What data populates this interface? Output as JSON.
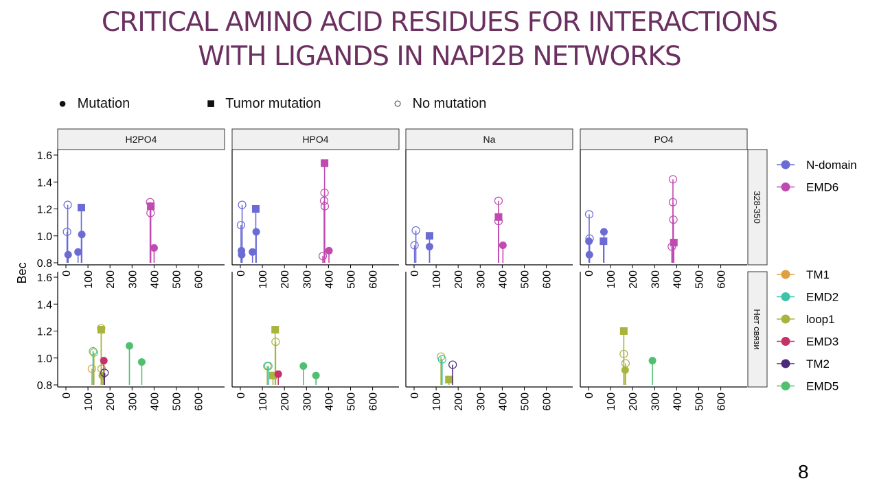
{
  "title_line1": "CRITICAL AMINO ACID RESIDUES FOR INTERACTIONS",
  "title_line2": "WITH LIGANDS IN NAPI2B NETWORKS",
  "page_number": "8",
  "shape_legend": [
    {
      "label": "Mutation",
      "symbol": "filled-circle"
    },
    {
      "label": "Tumor mutation",
      "symbol": "filled-square"
    },
    {
      "label": "No mutation",
      "symbol": "open-circle"
    }
  ],
  "chart_data": {
    "type": "scatter",
    "style": "lollipop facet grid",
    "ylabel": "Вес",
    "facet_cols": [
      "H2PO4",
      "HPO4",
      "Na",
      "PO4"
    ],
    "facet_rows": [
      "328-350",
      "Нет связи"
    ],
    "x_ticks": [
      0,
      100,
      200,
      300,
      400,
      500,
      600
    ],
    "y_ticks": [
      0.8,
      1.0,
      1.2,
      1.4,
      1.6
    ],
    "xlim": [
      0,
      700
    ],
    "ylim": [
      0.8,
      1.6
    ],
    "legend_position": "right",
    "colors": {
      "N-domain": "#6b6bd6",
      "EMD6": "#c04ab0",
      "TM1": "#e0a040",
      "EMD2": "#3cc4a8",
      "loop1": "#a8b43c",
      "EMD3": "#c8306c",
      "TM2": "#4a2a7a",
      "EMD5": "#50c070"
    },
    "legend_groups": [
      {
        "row": "328-350",
        "entries": [
          "N-domain",
          "EMD6"
        ]
      },
      {
        "row": "Нет связи",
        "entries": [
          "TM1",
          "EMD2",
          "loop1",
          "EMD3",
          "TM2",
          "EMD5"
        ]
      }
    ],
    "panels": [
      {
        "col": "H2PO4",
        "row": "328-350",
        "points": [
          {
            "x": 8,
            "y": 1.23,
            "domain": "N-domain",
            "shape": "open"
          },
          {
            "x": 5,
            "y": 1.03,
            "domain": "N-domain",
            "shape": "open"
          },
          {
            "x": 10,
            "y": 0.86,
            "domain": "N-domain",
            "shape": "circle"
          },
          {
            "x": 55,
            "y": 0.88,
            "domain": "N-domain",
            "shape": "circle"
          },
          {
            "x": 70,
            "y": 1.21,
            "domain": "N-domain",
            "shape": "square"
          },
          {
            "x": 72,
            "y": 1.01,
            "domain": "N-domain",
            "shape": "circle"
          },
          {
            "x": 382,
            "y": 1.25,
            "domain": "EMD6",
            "shape": "open"
          },
          {
            "x": 384,
            "y": 1.17,
            "domain": "EMD6",
            "shape": "open"
          },
          {
            "x": 385,
            "y": 1.22,
            "domain": "EMD6",
            "shape": "square"
          },
          {
            "x": 400,
            "y": 0.91,
            "domain": "EMD6",
            "shape": "circle"
          }
        ]
      },
      {
        "col": "HPO4",
        "row": "328-350",
        "points": [
          {
            "x": 8,
            "y": 1.23,
            "domain": "N-domain",
            "shape": "open"
          },
          {
            "x": 3,
            "y": 1.08,
            "domain": "N-domain",
            "shape": "open"
          },
          {
            "x": 5,
            "y": 0.89,
            "domain": "N-domain",
            "shape": "circle"
          },
          {
            "x": 6,
            "y": 0.86,
            "domain": "N-domain",
            "shape": "circle"
          },
          {
            "x": 55,
            "y": 0.88,
            "domain": "N-domain",
            "shape": "circle"
          },
          {
            "x": 70,
            "y": 1.2,
            "domain": "N-domain",
            "shape": "square"
          },
          {
            "x": 72,
            "y": 1.03,
            "domain": "N-domain",
            "shape": "circle"
          },
          {
            "x": 382,
            "y": 1.54,
            "domain": "EMD6",
            "shape": "square"
          },
          {
            "x": 382,
            "y": 1.32,
            "domain": "EMD6",
            "shape": "open"
          },
          {
            "x": 380,
            "y": 1.26,
            "domain": "EMD6",
            "shape": "open"
          },
          {
            "x": 383,
            "y": 1.22,
            "domain": "EMD6",
            "shape": "open"
          },
          {
            "x": 374,
            "y": 0.85,
            "domain": "EMD6",
            "shape": "open"
          },
          {
            "x": 402,
            "y": 0.89,
            "domain": "EMD6",
            "shape": "circle"
          }
        ]
      },
      {
        "col": "Na",
        "row": "328-350",
        "points": [
          {
            "x": 8,
            "y": 1.04,
            "domain": "N-domain",
            "shape": "open"
          },
          {
            "x": 2,
            "y": 0.93,
            "domain": "N-domain",
            "shape": "open"
          },
          {
            "x": 70,
            "y": 1.0,
            "domain": "N-domain",
            "shape": "square"
          },
          {
            "x": 70,
            "y": 0.92,
            "domain": "N-domain",
            "shape": "circle"
          },
          {
            "x": 383,
            "y": 1.26,
            "domain": "EMD6",
            "shape": "open"
          },
          {
            "x": 383,
            "y": 1.14,
            "domain": "EMD6",
            "shape": "square"
          },
          {
            "x": 383,
            "y": 1.11,
            "domain": "EMD6",
            "shape": "open"
          },
          {
            "x": 403,
            "y": 0.93,
            "domain": "EMD6",
            "shape": "circle"
          }
        ]
      },
      {
        "col": "PO4",
        "row": "328-350",
        "points": [
          {
            "x": 3,
            "y": 1.16,
            "domain": "N-domain",
            "shape": "open"
          },
          {
            "x": 5,
            "y": 0.98,
            "domain": "N-domain",
            "shape": "open"
          },
          {
            "x": 2,
            "y": 0.96,
            "domain": "N-domain",
            "shape": "circle"
          },
          {
            "x": 4,
            "y": 0.86,
            "domain": "N-domain",
            "shape": "circle"
          },
          {
            "x": 70,
            "y": 1.03,
            "domain": "N-domain",
            "shape": "circle"
          },
          {
            "x": 68,
            "y": 0.96,
            "domain": "N-domain",
            "shape": "square"
          },
          {
            "x": 383,
            "y": 1.42,
            "domain": "EMD6",
            "shape": "open"
          },
          {
            "x": 383,
            "y": 1.25,
            "domain": "EMD6",
            "shape": "open"
          },
          {
            "x": 385,
            "y": 1.12,
            "domain": "EMD6",
            "shape": "open"
          },
          {
            "x": 378,
            "y": 0.92,
            "domain": "EMD6",
            "shape": "open"
          },
          {
            "x": 387,
            "y": 0.95,
            "domain": "EMD6",
            "shape": "square"
          }
        ]
      },
      {
        "col": "H2PO4",
        "row": "Нет связи",
        "points": [
          {
            "x": 118,
            "y": 0.92,
            "domain": "TM1",
            "shape": "open"
          },
          {
            "x": 123,
            "y": 1.05,
            "domain": "EMD2",
            "shape": "open"
          },
          {
            "x": 127,
            "y": 1.04,
            "domain": "loop1",
            "shape": "open"
          },
          {
            "x": 160,
            "y": 1.22,
            "domain": "loop1",
            "shape": "open"
          },
          {
            "x": 160,
            "y": 1.21,
            "domain": "loop1",
            "shape": "square"
          },
          {
            "x": 162,
            "y": 0.92,
            "domain": "loop1",
            "shape": "open"
          },
          {
            "x": 165,
            "y": 0.87,
            "domain": "loop1",
            "shape": "circle"
          },
          {
            "x": 172,
            "y": 0.98,
            "domain": "EMD3",
            "shape": "circle"
          },
          {
            "x": 175,
            "y": 0.89,
            "domain": "TM2",
            "shape": "open"
          },
          {
            "x": 288,
            "y": 1.09,
            "domain": "EMD5",
            "shape": "circle"
          },
          {
            "x": 344,
            "y": 0.97,
            "domain": "EMD5",
            "shape": "circle"
          }
        ]
      },
      {
        "col": "HPO4",
        "row": "Нет связи",
        "points": [
          {
            "x": 122,
            "y": 0.94,
            "domain": "loop1",
            "shape": "open"
          },
          {
            "x": 127,
            "y": 0.94,
            "domain": "EMD2",
            "shape": "open"
          },
          {
            "x": 158,
            "y": 1.21,
            "domain": "loop1",
            "shape": "square"
          },
          {
            "x": 160,
            "y": 1.12,
            "domain": "loop1",
            "shape": "open"
          },
          {
            "x": 148,
            "y": 0.87,
            "domain": "loop1",
            "shape": "square"
          },
          {
            "x": 172,
            "y": 0.88,
            "domain": "EMD3",
            "shape": "circle"
          },
          {
            "x": 286,
            "y": 0.94,
            "domain": "EMD5",
            "shape": "circle"
          },
          {
            "x": 343,
            "y": 0.87,
            "domain": "EMD5",
            "shape": "circle"
          }
        ]
      },
      {
        "col": "Na",
        "row": "Нет связи",
        "points": [
          {
            "x": 122,
            "y": 1.01,
            "domain": "loop1",
            "shape": "open"
          },
          {
            "x": 127,
            "y": 0.99,
            "domain": "EMD2",
            "shape": "open"
          },
          {
            "x": 158,
            "y": 0.84,
            "domain": "loop1",
            "shape": "square"
          },
          {
            "x": 175,
            "y": 0.95,
            "domain": "TM2",
            "shape": "open"
          }
        ]
      },
      {
        "col": "PO4",
        "row": "Нет связи",
        "points": [
          {
            "x": 160,
            "y": 1.2,
            "domain": "loop1",
            "shape": "square"
          },
          {
            "x": 160,
            "y": 1.03,
            "domain": "loop1",
            "shape": "open"
          },
          {
            "x": 168,
            "y": 0.96,
            "domain": "loop1",
            "shape": "open"
          },
          {
            "x": 166,
            "y": 0.91,
            "domain": "loop1",
            "shape": "circle"
          },
          {
            "x": 290,
            "y": 0.98,
            "domain": "EMD5",
            "shape": "circle"
          }
        ]
      }
    ]
  }
}
